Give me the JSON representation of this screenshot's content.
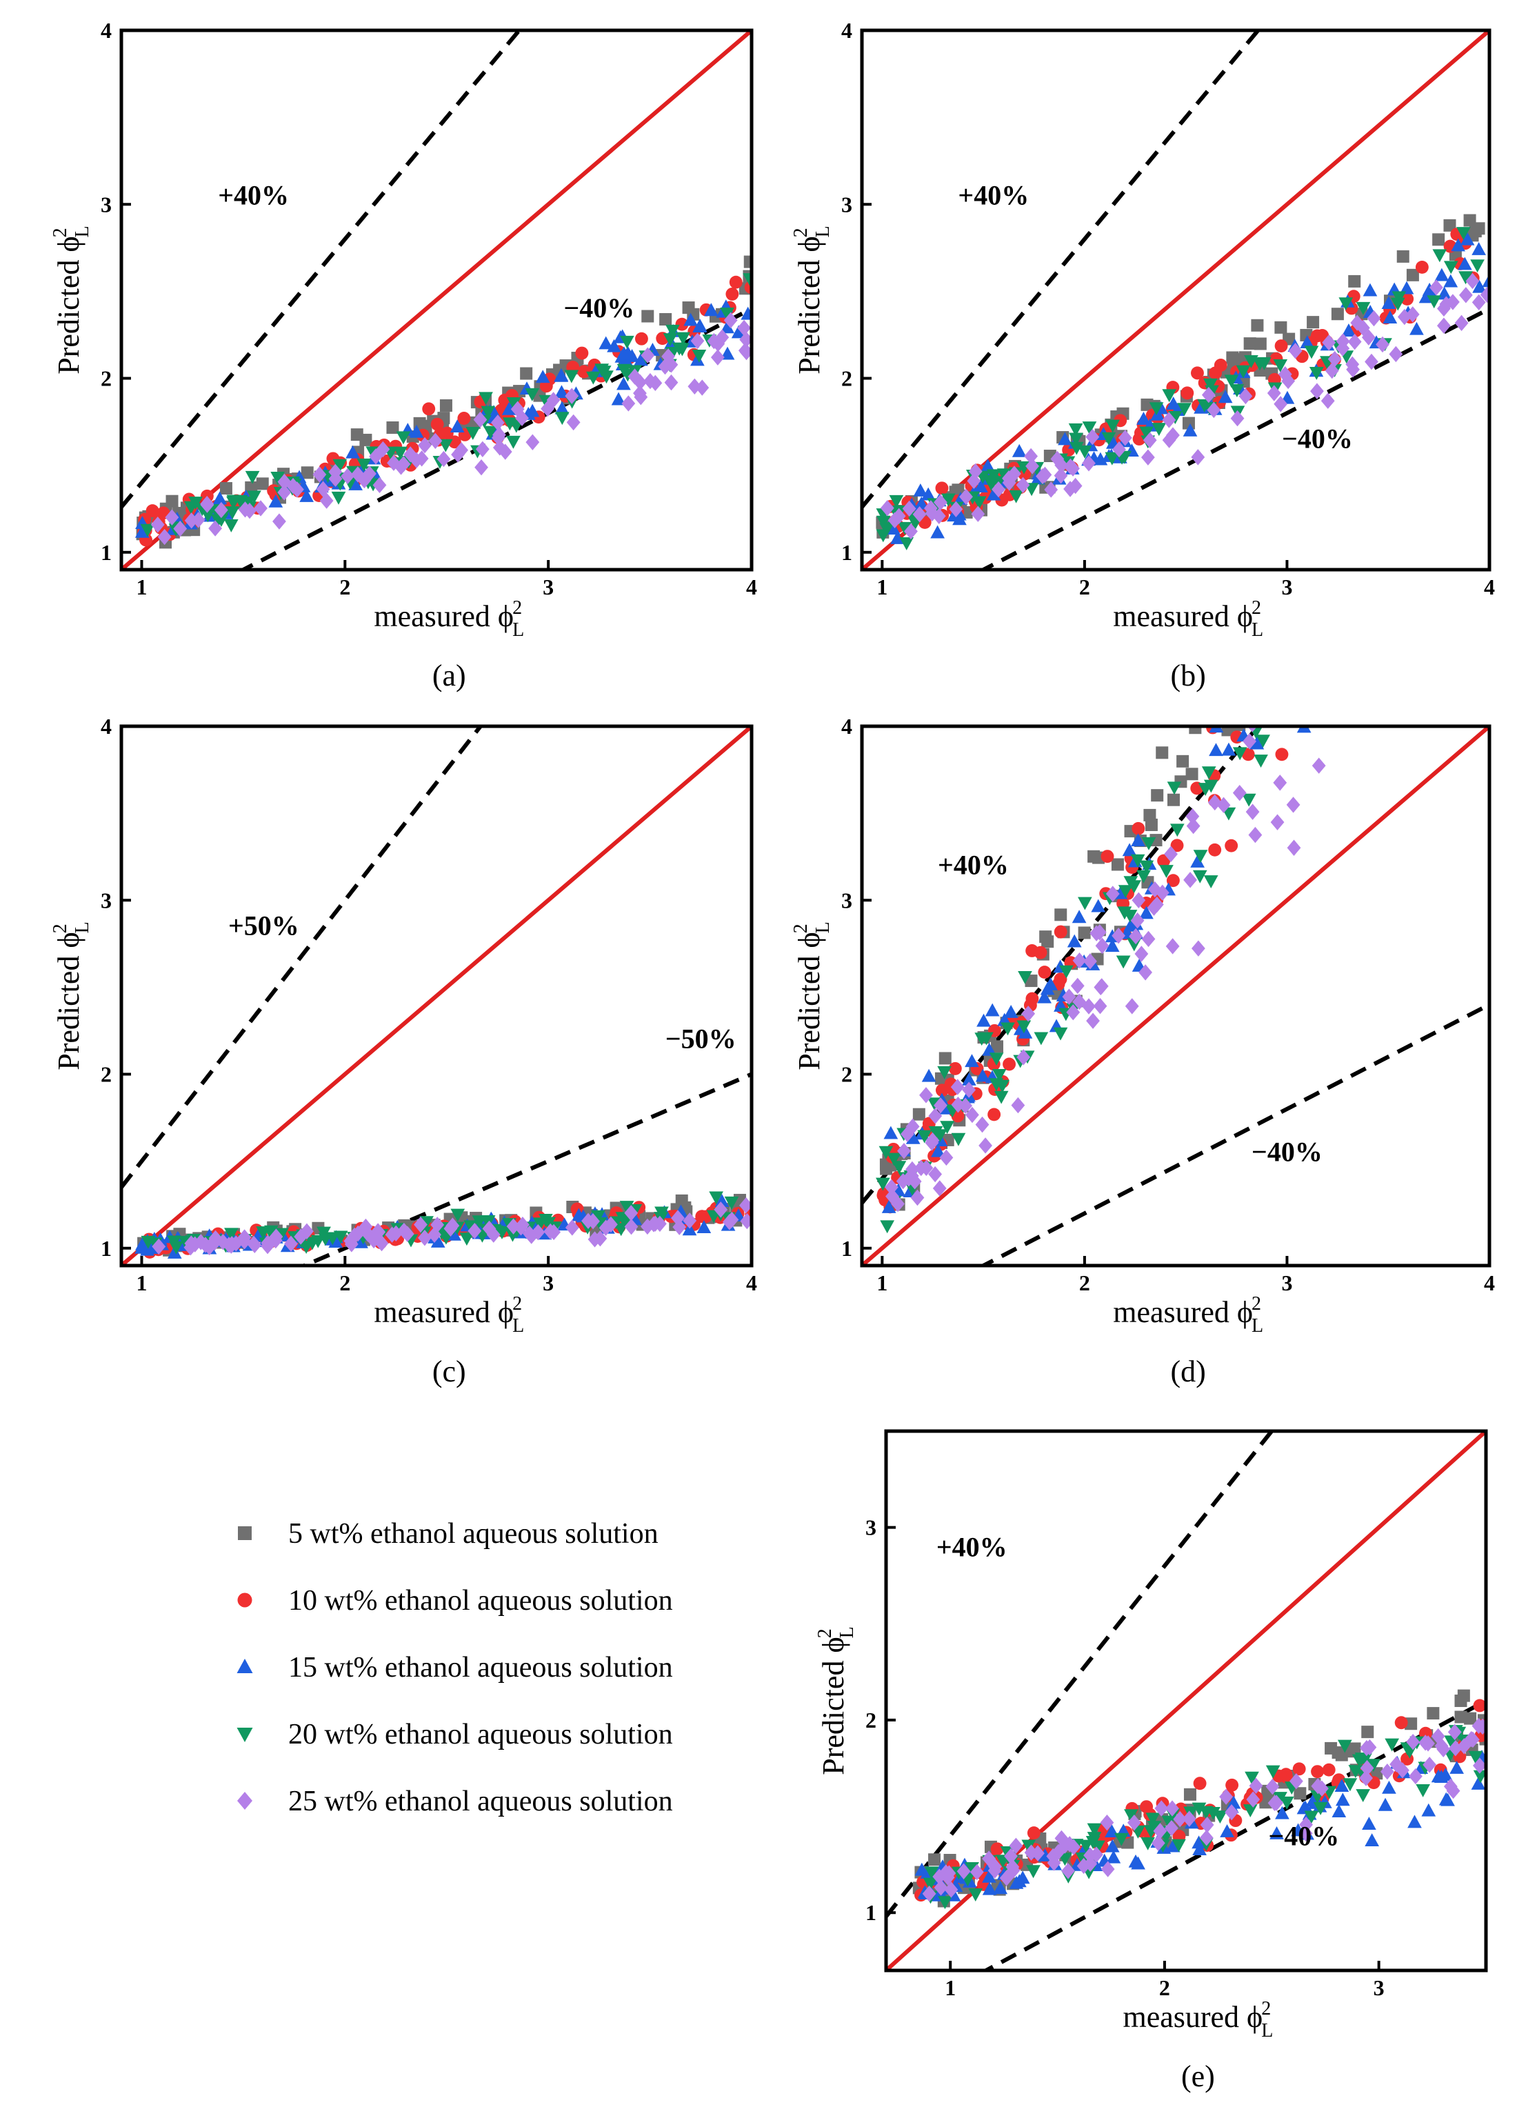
{
  "figure": {
    "point_count_per_series": 80,
    "colors": {
      "frame": "#000000",
      "reference_line": "#e02020",
      "band_line": "#000000"
    },
    "legend": [
      {
        "label": "5 wt%  ethanol aqueous solution",
        "marker": "square",
        "color": "#707070"
      },
      {
        "label": "10 wt% ethanol aqueous solution",
        "marker": "circle",
        "color": "#f03030"
      },
      {
        "label": "15 wt% ethanol aqueous solution",
        "marker": "triangle-up",
        "color": "#1f5fe0"
      },
      {
        "label": "20 wt% ethanol aqueous solution",
        "marker": "triangle-down",
        "color": "#109860"
      },
      {
        "label": "25 wt% ethanol aqueous solution",
        "marker": "diamond",
        "color": "#b480e8"
      }
    ]
  },
  "chart_data": [
    {
      "id": "a",
      "type": "scatter",
      "panel_label": "(a)",
      "xlabel": "measured",
      "ylabel": "Predicted",
      "axis_symbol": "ϕ",
      "axis_sub": "L",
      "axis_sup": "2",
      "xlim": [
        0.9,
        4
      ],
      "ylim": [
        0.9,
        4
      ],
      "xticks": [
        1,
        2,
        3,
        4
      ],
      "yticks": [
        1,
        2,
        3,
        4
      ],
      "bands": [
        {
          "factor": 1.4,
          "label": "+40%",
          "label_pos": [
            1.55,
            3.0
          ]
        },
        {
          "factor": 0.6,
          "label": "−40%",
          "label_pos": [
            3.25,
            2.35
          ]
        }
      ],
      "trend": {
        "a": 0.92,
        "b": 0.16,
        "c": 0.055
      },
      "trend_shifts": [
        0.05,
        0.02,
        0.0,
        -0.01,
        -0.06
      ],
      "spread": 0.045,
      "x_range": [
        1.0,
        4.0
      ]
    },
    {
      "id": "b",
      "type": "scatter",
      "panel_label": "(b)",
      "xlabel": "measured",
      "ylabel": "Predicted",
      "axis_symbol": "ϕ",
      "axis_sub": "L",
      "axis_sup": "2",
      "xlim": [
        0.9,
        4
      ],
      "ylim": [
        0.9,
        4
      ],
      "xticks": [
        1,
        2,
        3,
        4
      ],
      "yticks": [
        1,
        2,
        3,
        4
      ],
      "bands": [
        {
          "factor": 1.4,
          "label": "+40%",
          "label_pos": [
            1.55,
            3.0
          ]
        },
        {
          "factor": 0.6,
          "label": "−40%",
          "label_pos": [
            3.15,
            1.6
          ]
        }
      ],
      "trend": {
        "a": 0.9,
        "b": 0.2,
        "c": 0.065
      },
      "trend_shifts": [
        0.07,
        0.03,
        0.0,
        0.01,
        -0.06
      ],
      "spread": 0.055,
      "x_range": [
        1.0,
        4.0
      ]
    },
    {
      "id": "c",
      "type": "scatter",
      "panel_label": "(c)",
      "xlabel": "measured",
      "ylabel": "Predicted",
      "axis_symbol": "ϕ",
      "axis_sub": "L",
      "axis_sup": "2",
      "xlim": [
        0.9,
        4
      ],
      "ylim": [
        0.9,
        4
      ],
      "xticks": [
        1,
        2,
        3,
        4
      ],
      "yticks": [
        1,
        2,
        3,
        4
      ],
      "bands": [
        {
          "factor": 1.5,
          "label": "+50%",
          "label_pos": [
            1.6,
            2.8
          ]
        },
        {
          "factor": 0.5,
          "label": "−50%",
          "label_pos": [
            3.75,
            2.15
          ]
        }
      ],
      "trend": {
        "a": 0.97,
        "b": 0.04,
        "c": 0.005
      },
      "trend_shifts": [
        0.01,
        0.005,
        0.0,
        0.005,
        -0.01
      ],
      "spread": 0.02,
      "x_range": [
        1.0,
        4.0
      ]
    },
    {
      "id": "d",
      "type": "scatter",
      "panel_label": "(d)",
      "xlabel": "measured",
      "ylabel": "Predicted",
      "axis_symbol": "ϕ",
      "axis_sub": "L",
      "axis_sup": "2",
      "xlim": [
        0.9,
        4
      ],
      "ylim": [
        0.9,
        4
      ],
      "xticks": [
        1,
        2,
        3,
        4
      ],
      "yticks": [
        1,
        2,
        3,
        4
      ],
      "bands": [
        {
          "factor": 1.4,
          "label": "+40%",
          "label_pos": [
            1.45,
            3.15
          ]
        },
        {
          "factor": 0.6,
          "label": "−40%",
          "label_pos": [
            3.0,
            1.5
          ]
        }
      ],
      "trend": {
        "a": 0.05,
        "b": 1.2,
        "c": 0.05
      },
      "trend_shifts": [
        0.25,
        0.1,
        0.05,
        0.05,
        -0.15
      ],
      "spread": 0.13,
      "x_range": [
        1.0,
        3.3
      ]
    },
    {
      "id": "e",
      "type": "scatter",
      "panel_label": "(e)",
      "xlabel": "measured",
      "ylabel": "Predicted",
      "axis_symbol": "ϕ",
      "axis_sub": "L",
      "axis_sup": "2",
      "xlim": [
        0.7,
        3.5
      ],
      "ylim": [
        0.7,
        3.5
      ],
      "xticks": [
        1,
        2,
        3
      ],
      "yticks": [
        1,
        2,
        3
      ],
      "bands": [
        {
          "factor": 1.4,
          "label": "+40%",
          "label_pos": [
            1.1,
            2.85
          ]
        },
        {
          "factor": 0.6,
          "label": "−40%",
          "label_pos": [
            2.65,
            1.35
          ]
        }
      ],
      "trend": {
        "a": 0.95,
        "b": 0.2,
        "c": 0.02
      },
      "trend_shifts": [
        0.03,
        0.02,
        -0.06,
        0.02,
        0.0
      ],
      "spread": 0.05,
      "x_range": [
        0.85,
        3.5
      ]
    }
  ]
}
